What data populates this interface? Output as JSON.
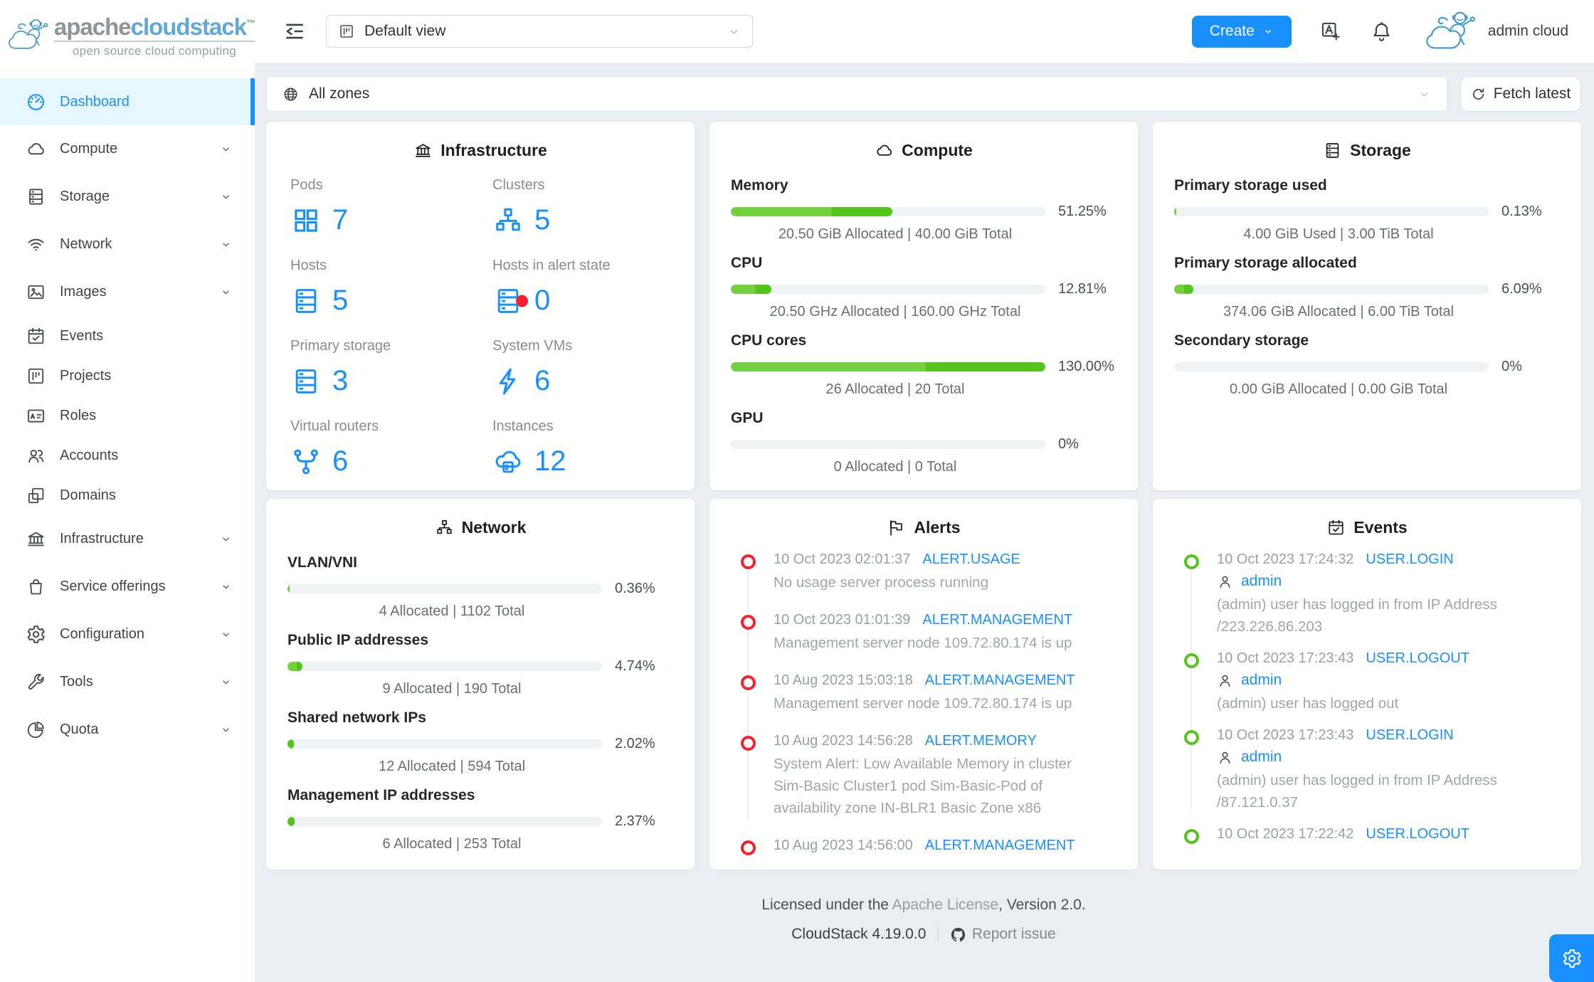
{
  "colors": {
    "accent": "#1890ff",
    "progress_light": "#73d13d",
    "progress_dark": "#52c41a",
    "alert_dot": "#f5222d",
    "event_dot": "#52c41a"
  },
  "brand": {
    "name_primary": "apache",
    "name_secondary": "cloudstack",
    "trademark": "TM",
    "tagline": "open source cloud computing"
  },
  "header": {
    "view_select": "Default view",
    "create_label": "Create",
    "user": "admin cloud"
  },
  "zonebar": {
    "selected": "All zones",
    "fetch_label": "Fetch latest"
  },
  "sidebar": {
    "items": [
      {
        "label": "Dashboard"
      },
      {
        "label": "Compute"
      },
      {
        "label": "Storage"
      },
      {
        "label": "Network"
      },
      {
        "label": "Images"
      },
      {
        "label": "Events"
      },
      {
        "label": "Projects"
      },
      {
        "label": "Roles"
      },
      {
        "label": "Accounts"
      },
      {
        "label": "Domains"
      },
      {
        "label": "Infrastructure"
      },
      {
        "label": "Service offerings"
      },
      {
        "label": "Configuration"
      },
      {
        "label": "Tools"
      },
      {
        "label": "Quota"
      }
    ]
  },
  "cards": {
    "infrastructure": {
      "title": "Infrastructure",
      "stats": [
        {
          "label": "Pods",
          "value": "7"
        },
        {
          "label": "Clusters",
          "value": "5"
        },
        {
          "label": "Hosts",
          "value": "5"
        },
        {
          "label": "Hosts in alert state",
          "value": "0"
        },
        {
          "label": "Primary storage",
          "value": "3"
        },
        {
          "label": "System VMs",
          "value": "6"
        },
        {
          "label": "Virtual routers",
          "value": "6"
        },
        {
          "label": "Instances",
          "value": "12"
        }
      ]
    },
    "compute": {
      "title": "Compute",
      "metrics": [
        {
          "label": "Memory",
          "percent": 51.25,
          "dark_start": 32,
          "percent_label": "51.25%",
          "detail": "20.50 GiB Allocated | 40.00 GiB Total"
        },
        {
          "label": "CPU",
          "percent": 12.81,
          "dark_start": 7.8,
          "percent_label": "12.81%",
          "detail": "20.50 GHz Allocated | 160.00 GHz Total"
        },
        {
          "label": "CPU cores",
          "percent": 100,
          "dark_start": 62,
          "percent_label": "130.00%",
          "detail": "26 Allocated | 20 Total"
        },
        {
          "label": "GPU",
          "percent": 0,
          "dark_start": 0,
          "percent_label": "0%",
          "detail": "0 Allocated | 0 Total"
        }
      ]
    },
    "storage": {
      "title": "Storage",
      "metrics": [
        {
          "label": "Primary storage used",
          "percent": 0.6,
          "dark_start": 0.6,
          "percent_label": "0.13%",
          "detail": "4.00 GiB Used | 3.00 TiB Total"
        },
        {
          "label": "Primary storage allocated",
          "percent": 6.09,
          "dark_start": 3.2,
          "percent_label": "6.09%",
          "detail": "374.06 GiB Allocated | 6.00 TiB Total"
        },
        {
          "label": "Secondary storage",
          "percent": 0,
          "dark_start": 0,
          "percent_label": "0%",
          "detail": "0.00 GiB Allocated | 0.00 GiB Total"
        }
      ]
    },
    "network": {
      "title": "Network",
      "metrics": [
        {
          "label": "VLAN/VNI",
          "percent": 0.6,
          "dark_start": 0.6,
          "percent_label": "0.36%",
          "detail": "4 Allocated | 1102 Total"
        },
        {
          "label": "Public IP addresses",
          "percent": 4.74,
          "dark_start": 2.9,
          "percent_label": "4.74%",
          "detail": "9 Allocated | 190 Total"
        },
        {
          "label": "Shared network IPs",
          "percent": 2.02,
          "dark_start": 0,
          "percent_label": "2.02%",
          "detail": "12 Allocated | 594 Total"
        },
        {
          "label": "Management IP addresses",
          "percent": 2.37,
          "dark_start": 0,
          "percent_label": "2.37%",
          "detail": "6 Allocated | 253 Total"
        }
      ]
    },
    "alerts": {
      "title": "Alerts",
      "items": [
        {
          "time": "10 Oct 2023 02:01:37",
          "type": "ALERT.USAGE",
          "desc": "No usage server process running"
        },
        {
          "time": "10 Oct 2023 01:01:39",
          "type": "ALERT.MANAGEMENT",
          "desc": "Management server node 109.72.80.174 is up"
        },
        {
          "time": "10 Aug 2023 15:03:18",
          "type": "ALERT.MANAGEMENT",
          "desc": "Management server node 109.72.80.174 is up"
        },
        {
          "time": "10 Aug 2023 14:56:28",
          "type": "ALERT.MEMORY",
          "desc": "System Alert: Low Available Memory in cluster Sim-Basic Cluster1 pod Sim-Basic-Pod of availability zone IN-BLR1 Basic Zone x86"
        },
        {
          "time": "10 Aug 2023 14:56:00",
          "type": "ALERT.MANAGEMENT"
        }
      ]
    },
    "events": {
      "title": "Events",
      "items": [
        {
          "time": "10 Oct 2023 17:24:32",
          "type": "USER.LOGIN",
          "user": "admin",
          "desc": "(admin) user has logged in from IP Address /223.226.86.203"
        },
        {
          "time": "10 Oct 2023 17:23:43",
          "type": "USER.LOGOUT",
          "user": "admin",
          "desc": "(admin) user has logged out"
        },
        {
          "time": "10 Oct 2023 17:23:43",
          "type": "USER.LOGIN",
          "user": "admin",
          "desc": "(admin) user has logged in from IP Address /87.121.0.37"
        },
        {
          "time": "10 Oct 2023 17:22:42",
          "type": "USER.LOGOUT"
        }
      ]
    }
  },
  "footer": {
    "license_prefix": "Licensed under the ",
    "license_link": "Apache License",
    "license_suffix": ", Version 2.0.",
    "version": "CloudStack 4.19.0.0",
    "separator": "|",
    "report": "Report issue"
  }
}
